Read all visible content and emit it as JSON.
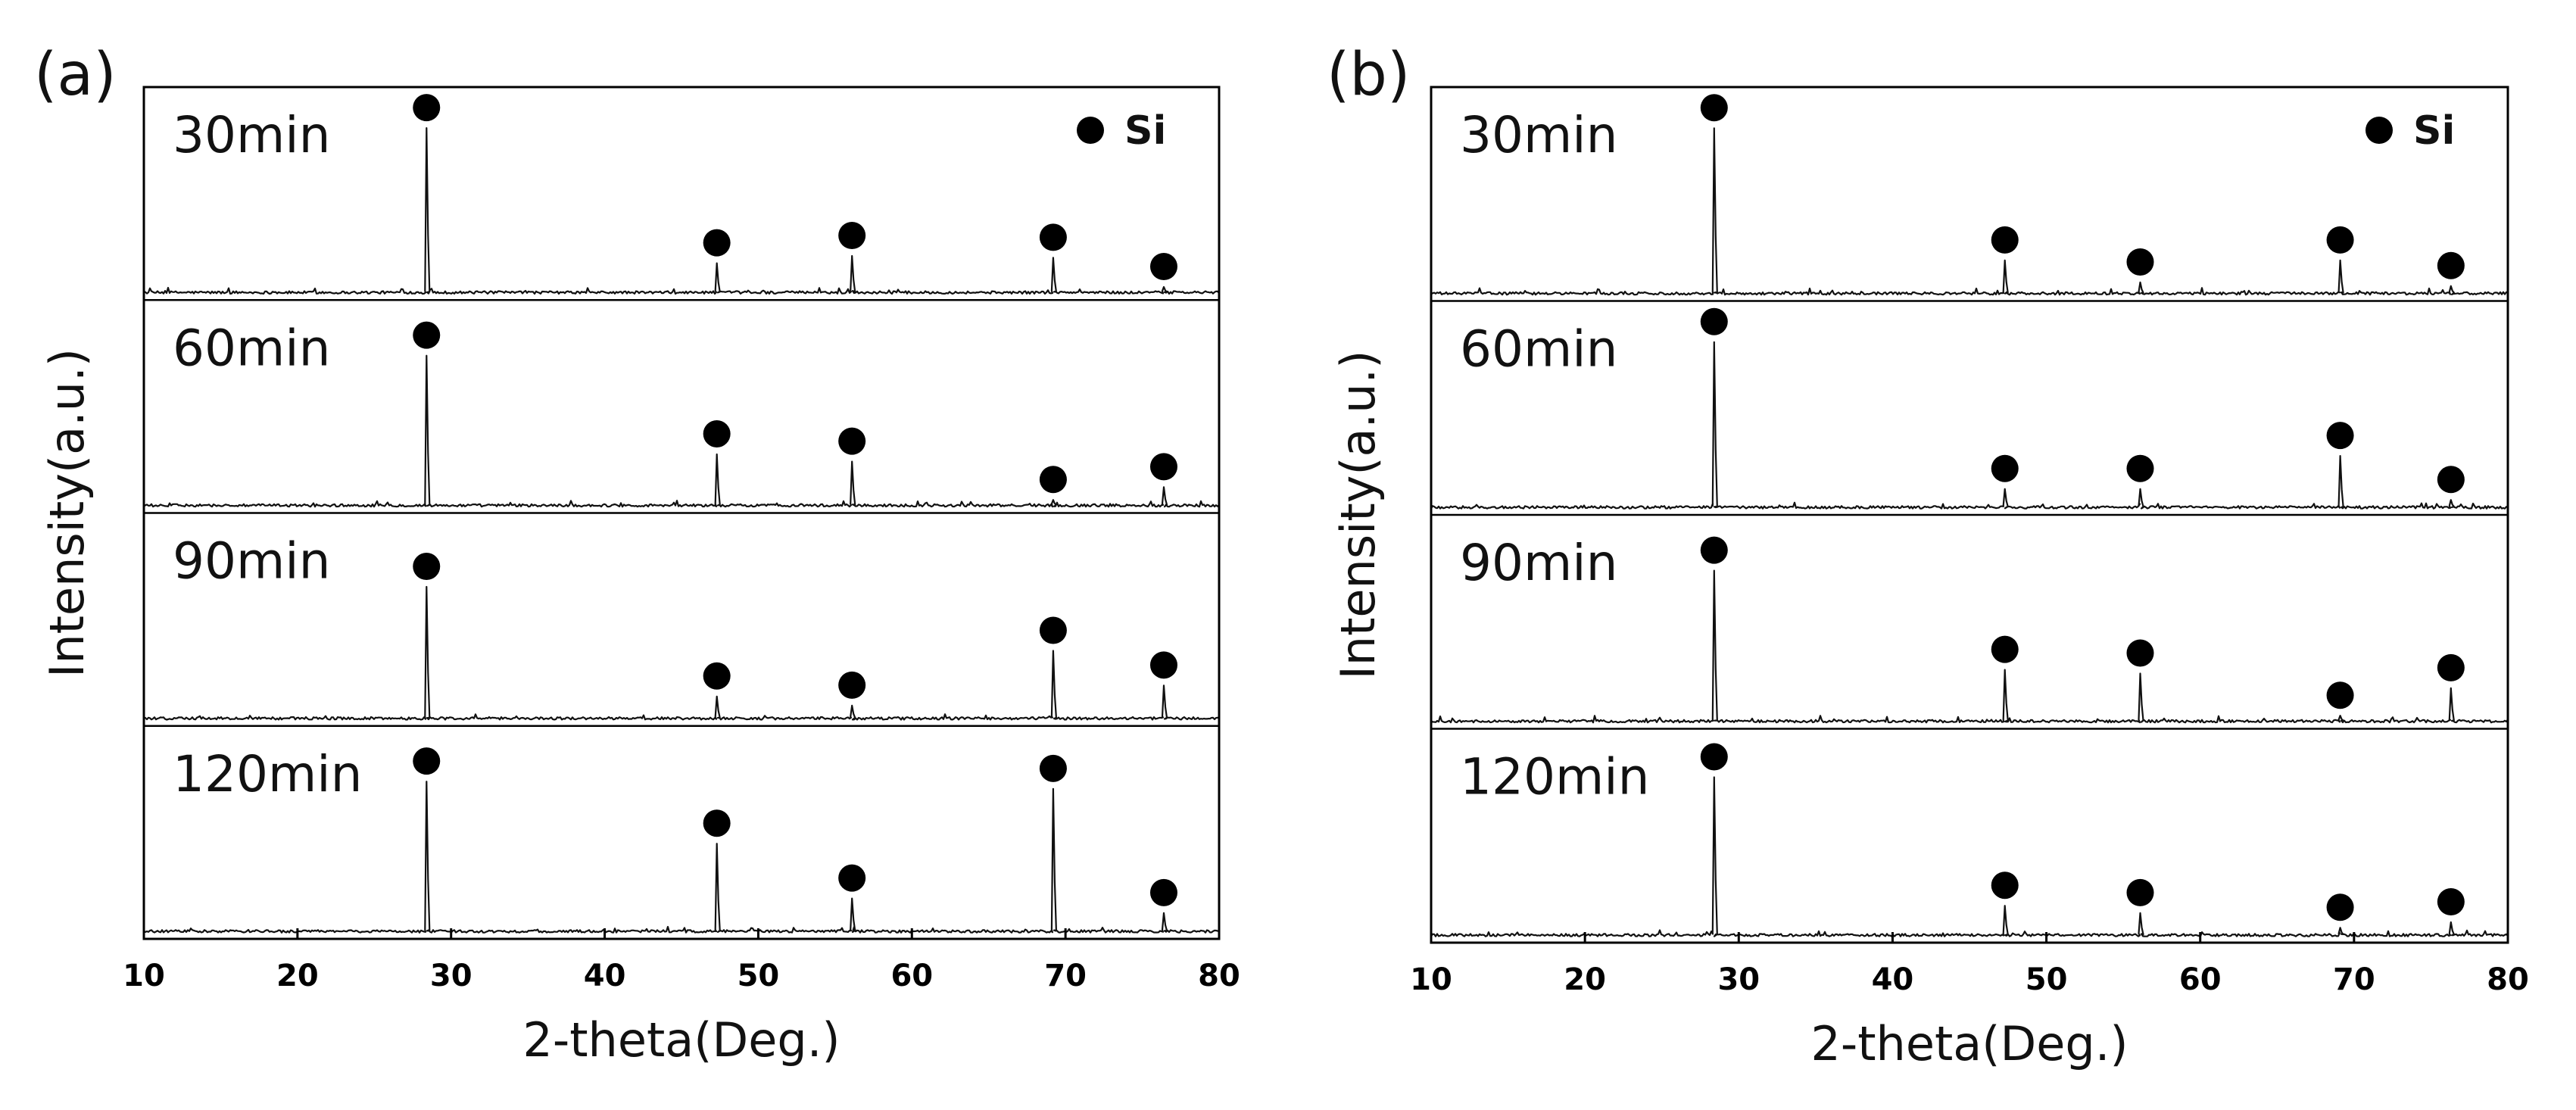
{
  "chart_data": [
    {
      "panel_label": "(a)",
      "type": "line",
      "xlabel": "2-theta(Deg.)",
      "ylabel": "Intensity(a.u.)",
      "xlim": [
        10,
        80
      ],
      "xticks": [
        10,
        20,
        30,
        40,
        50,
        60,
        70,
        80
      ],
      "legend": {
        "label": "Si",
        "marker": "filled-circle",
        "position": "top-right"
      },
      "series": [
        {
          "name": "30min",
          "peaks": [
            {
              "x": 28.4,
              "h": 0.9
            },
            {
              "x": 47.3,
              "h": 0.16
            },
            {
              "x": 56.1,
              "h": 0.2
            },
            {
              "x": 69.2,
              "h": 0.19
            },
            {
              "x": 76.4,
              "h": 0.03
            }
          ]
        },
        {
          "name": "60min",
          "peaks": [
            {
              "x": 28.4,
              "h": 0.82
            },
            {
              "x": 47.3,
              "h": 0.28
            },
            {
              "x": 56.1,
              "h": 0.24
            },
            {
              "x": 69.2,
              "h": 0.03
            },
            {
              "x": 76.4,
              "h": 0.1
            }
          ]
        },
        {
          "name": "90min",
          "peaks": [
            {
              "x": 28.4,
              "h": 0.72
            },
            {
              "x": 47.3,
              "h": 0.12
            },
            {
              "x": 56.1,
              "h": 0.07
            },
            {
              "x": 69.2,
              "h": 0.37
            },
            {
              "x": 76.4,
              "h": 0.18
            }
          ]
        },
        {
          "name": "120min",
          "peaks": [
            {
              "x": 28.4,
              "h": 0.82
            },
            {
              "x": 47.3,
              "h": 0.48
            },
            {
              "x": 56.1,
              "h": 0.18
            },
            {
              "x": 69.2,
              "h": 0.78
            },
            {
              "x": 76.4,
              "h": 0.1
            }
          ]
        }
      ]
    },
    {
      "panel_label": "(b)",
      "type": "line",
      "xlabel": "2-theta(Deg.)",
      "ylabel": "Intensity(a.u.)",
      "xlim": [
        10,
        80
      ],
      "xticks": [
        10,
        20,
        30,
        40,
        50,
        60,
        70,
        80
      ],
      "legend": {
        "label": "Si",
        "marker": "filled-circle",
        "position": "top-right"
      },
      "series": [
        {
          "name": "30min",
          "peaks": [
            {
              "x": 28.4,
              "h": 0.9
            },
            {
              "x": 47.3,
              "h": 0.18
            },
            {
              "x": 56.1,
              "h": 0.06
            },
            {
              "x": 69.1,
              "h": 0.18
            },
            {
              "x": 76.3,
              "h": 0.04
            }
          ]
        },
        {
          "name": "60min",
          "peaks": [
            {
              "x": 28.4,
              "h": 0.9
            },
            {
              "x": 47.3,
              "h": 0.1
            },
            {
              "x": 56.1,
              "h": 0.1
            },
            {
              "x": 69.1,
              "h": 0.28
            },
            {
              "x": 76.3,
              "h": 0.04
            }
          ]
        },
        {
          "name": "90min",
          "peaks": [
            {
              "x": 28.4,
              "h": 0.82
            },
            {
              "x": 47.3,
              "h": 0.28
            },
            {
              "x": 56.1,
              "h": 0.26
            },
            {
              "x": 69.1,
              "h": 0.03
            },
            {
              "x": 76.3,
              "h": 0.18
            }
          ]
        },
        {
          "name": "120min",
          "peaks": [
            {
              "x": 28.4,
              "h": 0.86
            },
            {
              "x": 47.3,
              "h": 0.16
            },
            {
              "x": 56.1,
              "h": 0.12
            },
            {
              "x": 69.1,
              "h": 0.04
            },
            {
              "x": 76.3,
              "h": 0.07
            }
          ]
        }
      ]
    }
  ]
}
